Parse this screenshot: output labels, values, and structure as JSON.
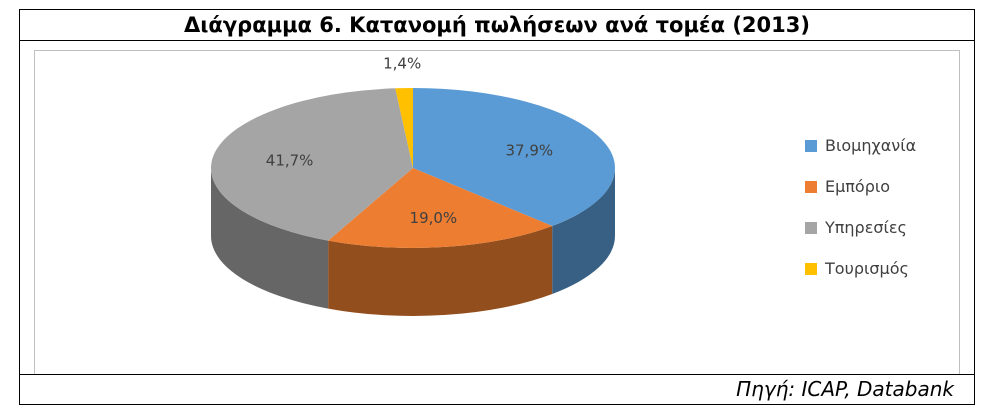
{
  "title": "Διάγραμμα 6. Κατανομή πωλήσεων ανά τομέα (2013)",
  "source": "Πηγή: ICAP, Databank",
  "chart_data": {
    "type": "pie",
    "style": "3d",
    "legend_position": "right",
    "categories": [
      "Βιομηχανία",
      "Εμπόριο",
      "Υπηρεσίες",
      "Τουρισμός"
    ],
    "values": [
      37.9,
      19.0,
      41.7,
      1.4
    ],
    "labels": [
      "37,9%",
      "19,0%",
      "41,7%",
      "1,4%"
    ],
    "colors": [
      "#5B9BD5",
      "#ED7D31",
      "#A5A5A5",
      "#FFC000"
    ]
  }
}
